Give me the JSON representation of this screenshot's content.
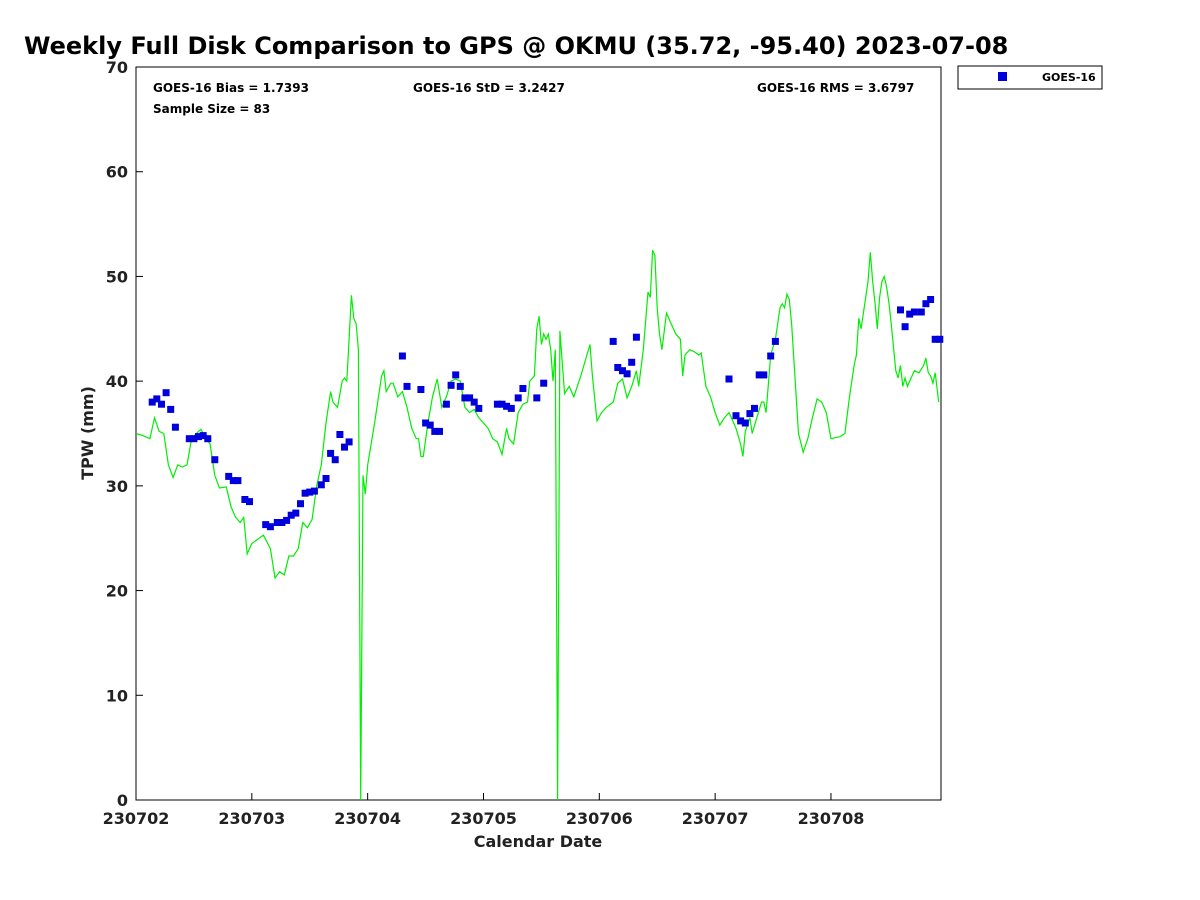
{
  "chart_data": {
    "type": "scatter",
    "title": "Weekly Full Disk Comparison to GPS @ OKMU (35.72, -95.40) 2023-07-08",
    "xlabel": "Calendar Date",
    "ylabel": "TPW (mm)",
    "ylim": [
      0,
      70
    ],
    "yticks": [
      0,
      10,
      20,
      30,
      40,
      50,
      60,
      70
    ],
    "xlim": [
      0,
      6.95
    ],
    "xticks": [
      {
        "v": 0,
        "label": "230702"
      },
      {
        "v": 1,
        "label": "230703"
      },
      {
        "v": 2,
        "label": "230704"
      },
      {
        "v": 3,
        "label": "230705"
      },
      {
        "v": 4,
        "label": "230706"
      },
      {
        "v": 5,
        "label": "230707"
      },
      {
        "v": 6,
        "label": "230708"
      }
    ],
    "grid": false,
    "legend": {
      "placement": "top-right",
      "entries": [
        "GOES-16"
      ]
    },
    "stats": {
      "bias": "GOES-16 Bias = 1.7393",
      "std": "GOES-16 StD = 3.2427",
      "rms": "GOES-16 RMS = 3.6797",
      "sample": "Sample Size = 83"
    },
    "colors": {
      "goes": "#0000dd",
      "gps": "#00ee00"
    },
    "series": [
      {
        "name": "GOES-16",
        "points": [
          [
            0.14,
            38.0
          ],
          [
            0.18,
            38.3
          ],
          [
            0.22,
            37.8
          ],
          [
            0.26,
            38.9
          ],
          [
            0.3,
            37.3
          ],
          [
            0.34,
            35.6
          ],
          [
            0.46,
            34.5
          ],
          [
            0.5,
            34.5
          ],
          [
            0.54,
            34.7
          ],
          [
            0.58,
            34.8
          ],
          [
            0.62,
            34.5
          ],
          [
            0.68,
            32.5
          ],
          [
            0.8,
            30.9
          ],
          [
            0.84,
            30.5
          ],
          [
            0.88,
            30.5
          ],
          [
            0.94,
            28.7
          ],
          [
            0.98,
            28.5
          ],
          [
            1.12,
            26.3
          ],
          [
            1.16,
            26.1
          ],
          [
            1.22,
            26.5
          ],
          [
            1.26,
            26.5
          ],
          [
            1.3,
            26.7
          ],
          [
            1.34,
            27.2
          ],
          [
            1.38,
            27.4
          ],
          [
            1.42,
            28.3
          ],
          [
            1.46,
            29.3
          ],
          [
            1.5,
            29.4
          ],
          [
            1.54,
            29.5
          ],
          [
            1.6,
            30.1
          ],
          [
            1.64,
            30.7
          ],
          [
            1.68,
            33.1
          ],
          [
            1.72,
            32.5
          ],
          [
            1.76,
            34.9
          ],
          [
            1.8,
            33.7
          ],
          [
            1.84,
            34.2
          ],
          [
            2.3,
            42.4
          ],
          [
            2.34,
            39.5
          ],
          [
            2.46,
            39.2
          ],
          [
            2.5,
            36.0
          ],
          [
            2.54,
            35.8
          ],
          [
            2.58,
            35.2
          ],
          [
            2.62,
            35.2
          ],
          [
            2.68,
            37.8
          ],
          [
            2.72,
            39.6
          ],
          [
            2.76,
            40.6
          ],
          [
            2.8,
            39.5
          ],
          [
            2.84,
            38.4
          ],
          [
            2.88,
            38.4
          ],
          [
            2.92,
            38.0
          ],
          [
            2.96,
            37.4
          ],
          [
            3.12,
            37.8
          ],
          [
            3.16,
            37.8
          ],
          [
            3.2,
            37.6
          ],
          [
            3.24,
            37.4
          ],
          [
            3.3,
            38.4
          ],
          [
            3.34,
            39.3
          ],
          [
            3.46,
            38.4
          ],
          [
            3.52,
            39.8
          ],
          [
            4.12,
            43.8
          ],
          [
            4.16,
            41.3
          ],
          [
            4.2,
            41.0
          ],
          [
            4.24,
            40.7
          ],
          [
            4.28,
            41.8
          ],
          [
            4.32,
            44.2
          ],
          [
            5.12,
            40.2
          ],
          [
            5.18,
            36.7
          ],
          [
            5.22,
            36.2
          ],
          [
            5.26,
            36.0
          ],
          [
            5.3,
            36.9
          ],
          [
            5.34,
            37.4
          ],
          [
            5.38,
            40.6
          ],
          [
            5.42,
            40.6
          ],
          [
            5.48,
            42.4
          ],
          [
            5.52,
            43.8
          ],
          [
            6.6,
            46.8
          ],
          [
            6.64,
            45.2
          ],
          [
            6.68,
            46.4
          ],
          [
            6.72,
            46.6
          ],
          [
            6.78,
            46.6
          ],
          [
            6.82,
            47.4
          ],
          [
            6.86,
            47.8
          ],
          [
            6.9,
            44.0
          ],
          [
            6.94,
            44.0
          ]
        ]
      },
      {
        "name": "",
        "line": [
          [
            0.0,
            35.0
          ],
          [
            0.06,
            34.8
          ],
          [
            0.12,
            34.5
          ],
          [
            0.16,
            36.5
          ],
          [
            0.2,
            35.2
          ],
          [
            0.24,
            35.0
          ],
          [
            0.28,
            32.0
          ],
          [
            0.32,
            30.8
          ],
          [
            0.36,
            32.0
          ],
          [
            0.4,
            31.8
          ],
          [
            0.44,
            32.0
          ],
          [
            0.48,
            34.5
          ],
          [
            0.52,
            35.0
          ],
          [
            0.56,
            35.4
          ],
          [
            0.6,
            34.6
          ],
          [
            0.64,
            34.0
          ],
          [
            0.68,
            31.0
          ],
          [
            0.72,
            29.8
          ],
          [
            0.78,
            29.9
          ],
          [
            0.82,
            28.0
          ],
          [
            0.86,
            27.0
          ],
          [
            0.9,
            26.5
          ],
          [
            0.93,
            27.0
          ],
          [
            0.96,
            23.5
          ],
          [
            1.0,
            24.5
          ],
          [
            1.1,
            25.3
          ],
          [
            1.16,
            24.0
          ],
          [
            1.2,
            21.2
          ],
          [
            1.24,
            21.8
          ],
          [
            1.28,
            21.5
          ],
          [
            1.32,
            23.3
          ],
          [
            1.36,
            23.3
          ],
          [
            1.4,
            24.0
          ],
          [
            1.44,
            26.5
          ],
          [
            1.48,
            26.0
          ],
          [
            1.52,
            26.8
          ],
          [
            1.56,
            30.0
          ],
          [
            1.6,
            32.0
          ],
          [
            1.64,
            36.0
          ],
          [
            1.68,
            39.0
          ],
          [
            1.7,
            38.0
          ],
          [
            1.74,
            37.5
          ],
          [
            1.78,
            40.0
          ],
          [
            1.8,
            40.3
          ],
          [
            1.82,
            40.0
          ],
          [
            1.84,
            44.0
          ],
          [
            1.86,
            48.2
          ],
          [
            1.88,
            46.0
          ],
          [
            1.9,
            45.5
          ],
          [
            1.92,
            43.0
          ],
          [
            1.94,
            0.0
          ],
          [
            1.96,
            31.0
          ],
          [
            1.98,
            29.2
          ],
          [
            2.0,
            32.0
          ],
          [
            2.06,
            36.0
          ],
          [
            2.12,
            40.5
          ],
          [
            2.14,
            41.0
          ],
          [
            2.16,
            39.0
          ],
          [
            2.2,
            39.8
          ],
          [
            2.22,
            39.8
          ],
          [
            2.26,
            38.5
          ],
          [
            2.3,
            39.0
          ],
          [
            2.34,
            37.5
          ],
          [
            2.38,
            35.5
          ],
          [
            2.42,
            34.5
          ],
          [
            2.44,
            34.5
          ],
          [
            2.46,
            32.8
          ],
          [
            2.48,
            32.8
          ],
          [
            2.52,
            36.0
          ],
          [
            2.56,
            38.5
          ],
          [
            2.6,
            40.2
          ],
          [
            2.64,
            37.5
          ],
          [
            2.68,
            38.5
          ],
          [
            2.72,
            40.0
          ],
          [
            2.76,
            40.2
          ],
          [
            2.8,
            40.0
          ],
          [
            2.84,
            37.5
          ],
          [
            2.88,
            37.0
          ],
          [
            2.92,
            37.3
          ],
          [
            2.96,
            36.5
          ],
          [
            3.0,
            36.0
          ],
          [
            3.04,
            35.5
          ],
          [
            3.08,
            34.5
          ],
          [
            3.12,
            34.2
          ],
          [
            3.16,
            33.0
          ],
          [
            3.2,
            35.5
          ],
          [
            3.22,
            34.5
          ],
          [
            3.26,
            34.0
          ],
          [
            3.3,
            37.0
          ],
          [
            3.34,
            37.8
          ],
          [
            3.38,
            38.0
          ],
          [
            3.4,
            40.0
          ],
          [
            3.44,
            40.5
          ],
          [
            3.46,
            45.0
          ],
          [
            3.48,
            46.2
          ],
          [
            3.5,
            43.5
          ],
          [
            3.52,
            44.5
          ],
          [
            3.54,
            44.0
          ],
          [
            3.56,
            44.5
          ],
          [
            3.58,
            43.0
          ],
          [
            3.6,
            40.0
          ],
          [
            3.62,
            43.0
          ],
          [
            3.64,
            0.0
          ],
          [
            3.66,
            44.8
          ],
          [
            3.7,
            38.8
          ],
          [
            3.74,
            39.5
          ],
          [
            3.78,
            38.5
          ],
          [
            3.84,
            40.5
          ],
          [
            3.88,
            42.0
          ],
          [
            3.92,
            43.5
          ],
          [
            3.94,
            40.5
          ],
          [
            3.98,
            36.2
          ],
          [
            4.02,
            37.0
          ],
          [
            4.06,
            37.5
          ],
          [
            4.12,
            38.0
          ],
          [
            4.16,
            39.8
          ],
          [
            4.2,
            40.2
          ],
          [
            4.24,
            38.4
          ],
          [
            4.28,
            39.5
          ],
          [
            4.32,
            41.0
          ],
          [
            4.34,
            39.5
          ],
          [
            4.38,
            43.0
          ],
          [
            4.42,
            48.5
          ],
          [
            4.44,
            48.0
          ],
          [
            4.46,
            52.5
          ],
          [
            4.48,
            52.0
          ],
          [
            4.5,
            47.0
          ],
          [
            4.52,
            44.5
          ],
          [
            4.54,
            43.0
          ],
          [
            4.58,
            46.5
          ],
          [
            4.62,
            45.5
          ],
          [
            4.66,
            44.5
          ],
          [
            4.7,
            44.0
          ],
          [
            4.72,
            40.5
          ],
          [
            4.74,
            42.5
          ],
          [
            4.78,
            43.0
          ],
          [
            4.82,
            42.8
          ],
          [
            4.86,
            42.5
          ],
          [
            4.88,
            42.7
          ],
          [
            4.92,
            39.5
          ],
          [
            4.96,
            38.5
          ],
          [
            5.0,
            37.0
          ],
          [
            5.04,
            35.8
          ],
          [
            5.08,
            36.5
          ],
          [
            5.12,
            37.0
          ],
          [
            5.14,
            36.5
          ],
          [
            5.18,
            35.5
          ],
          [
            5.22,
            34.0
          ],
          [
            5.24,
            32.8
          ],
          [
            5.26,
            35.2
          ],
          [
            5.3,
            36.5
          ],
          [
            5.32,
            35.0
          ],
          [
            5.36,
            36.5
          ],
          [
            5.4,
            38.0
          ],
          [
            5.42,
            38.0
          ],
          [
            5.44,
            37.0
          ],
          [
            5.48,
            42.5
          ],
          [
            5.52,
            44.0
          ],
          [
            5.56,
            47.0
          ],
          [
            5.58,
            47.4
          ],
          [
            5.6,
            47.0
          ],
          [
            5.62,
            48.3
          ],
          [
            5.64,
            47.8
          ],
          [
            5.66,
            45.5
          ],
          [
            5.68,
            42.0
          ],
          [
            5.7,
            38.5
          ],
          [
            5.72,
            35.0
          ],
          [
            5.76,
            33.2
          ],
          [
            5.8,
            34.5
          ],
          [
            5.84,
            36.5
          ],
          [
            5.88,
            38.3
          ],
          [
            5.92,
            38.0
          ],
          [
            5.96,
            37.0
          ],
          [
            6.0,
            34.5
          ],
          [
            6.08,
            34.7
          ],
          [
            6.12,
            35.0
          ],
          [
            6.16,
            38.5
          ],
          [
            6.2,
            41.5
          ],
          [
            6.22,
            42.5
          ],
          [
            6.24,
            46.0
          ],
          [
            6.26,
            45.0
          ],
          [
            6.3,
            48.0
          ],
          [
            6.32,
            49.5
          ],
          [
            6.34,
            52.3
          ],
          [
            6.36,
            49.5
          ],
          [
            6.38,
            47.5
          ],
          [
            6.4,
            45.0
          ],
          [
            6.42,
            48.0
          ],
          [
            6.44,
            49.5
          ],
          [
            6.46,
            50.0
          ],
          [
            6.48,
            49.0
          ],
          [
            6.5,
            47.5
          ],
          [
            6.52,
            45.5
          ],
          [
            6.56,
            41.0
          ],
          [
            6.58,
            40.3
          ],
          [
            6.6,
            41.5
          ],
          [
            6.62,
            39.5
          ],
          [
            6.64,
            40.3
          ],
          [
            6.66,
            39.5
          ],
          [
            6.68,
            40.0
          ],
          [
            6.72,
            41.0
          ],
          [
            6.76,
            40.8
          ],
          [
            6.8,
            41.5
          ],
          [
            6.82,
            42.2
          ],
          [
            6.84,
            40.8
          ],
          [
            6.86,
            40.5
          ],
          [
            6.88,
            39.8
          ],
          [
            6.9,
            40.8
          ],
          [
            6.93,
            38.0
          ]
        ]
      }
    ]
  }
}
